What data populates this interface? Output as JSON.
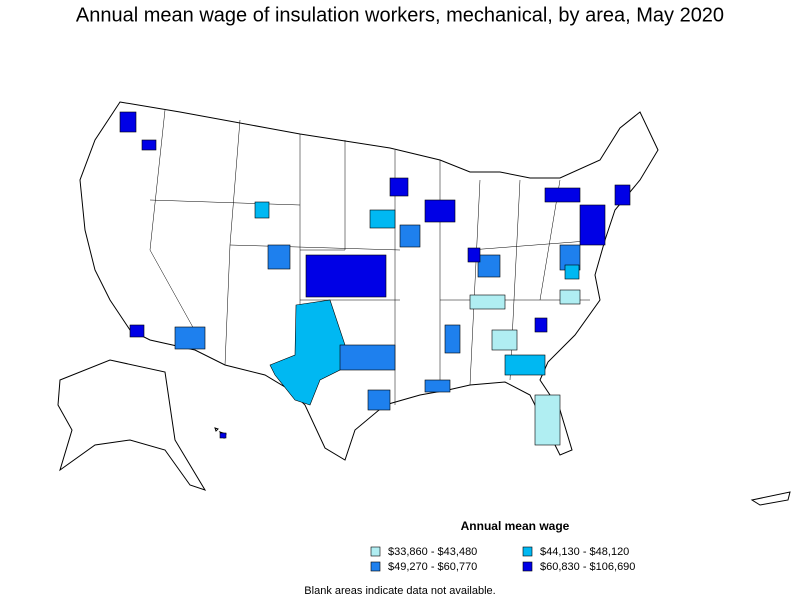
{
  "title": "Annual mean wage of insulation workers, mechanical, by area, May 2020",
  "legend": {
    "title": "Annual mean wage",
    "items": [
      {
        "label": "$33,860 - $43,480",
        "color": "#b0eef2"
      },
      {
        "label": "$44,130 - $48,120",
        "color": "#00b8f2"
      },
      {
        "label": "$49,270 - $60,770",
        "color": "#1e80ee"
      },
      {
        "label": "$60,830 - $106,690",
        "color": "#0000e6"
      }
    ]
  },
  "footnote": "Blank areas indicate data not available."
}
